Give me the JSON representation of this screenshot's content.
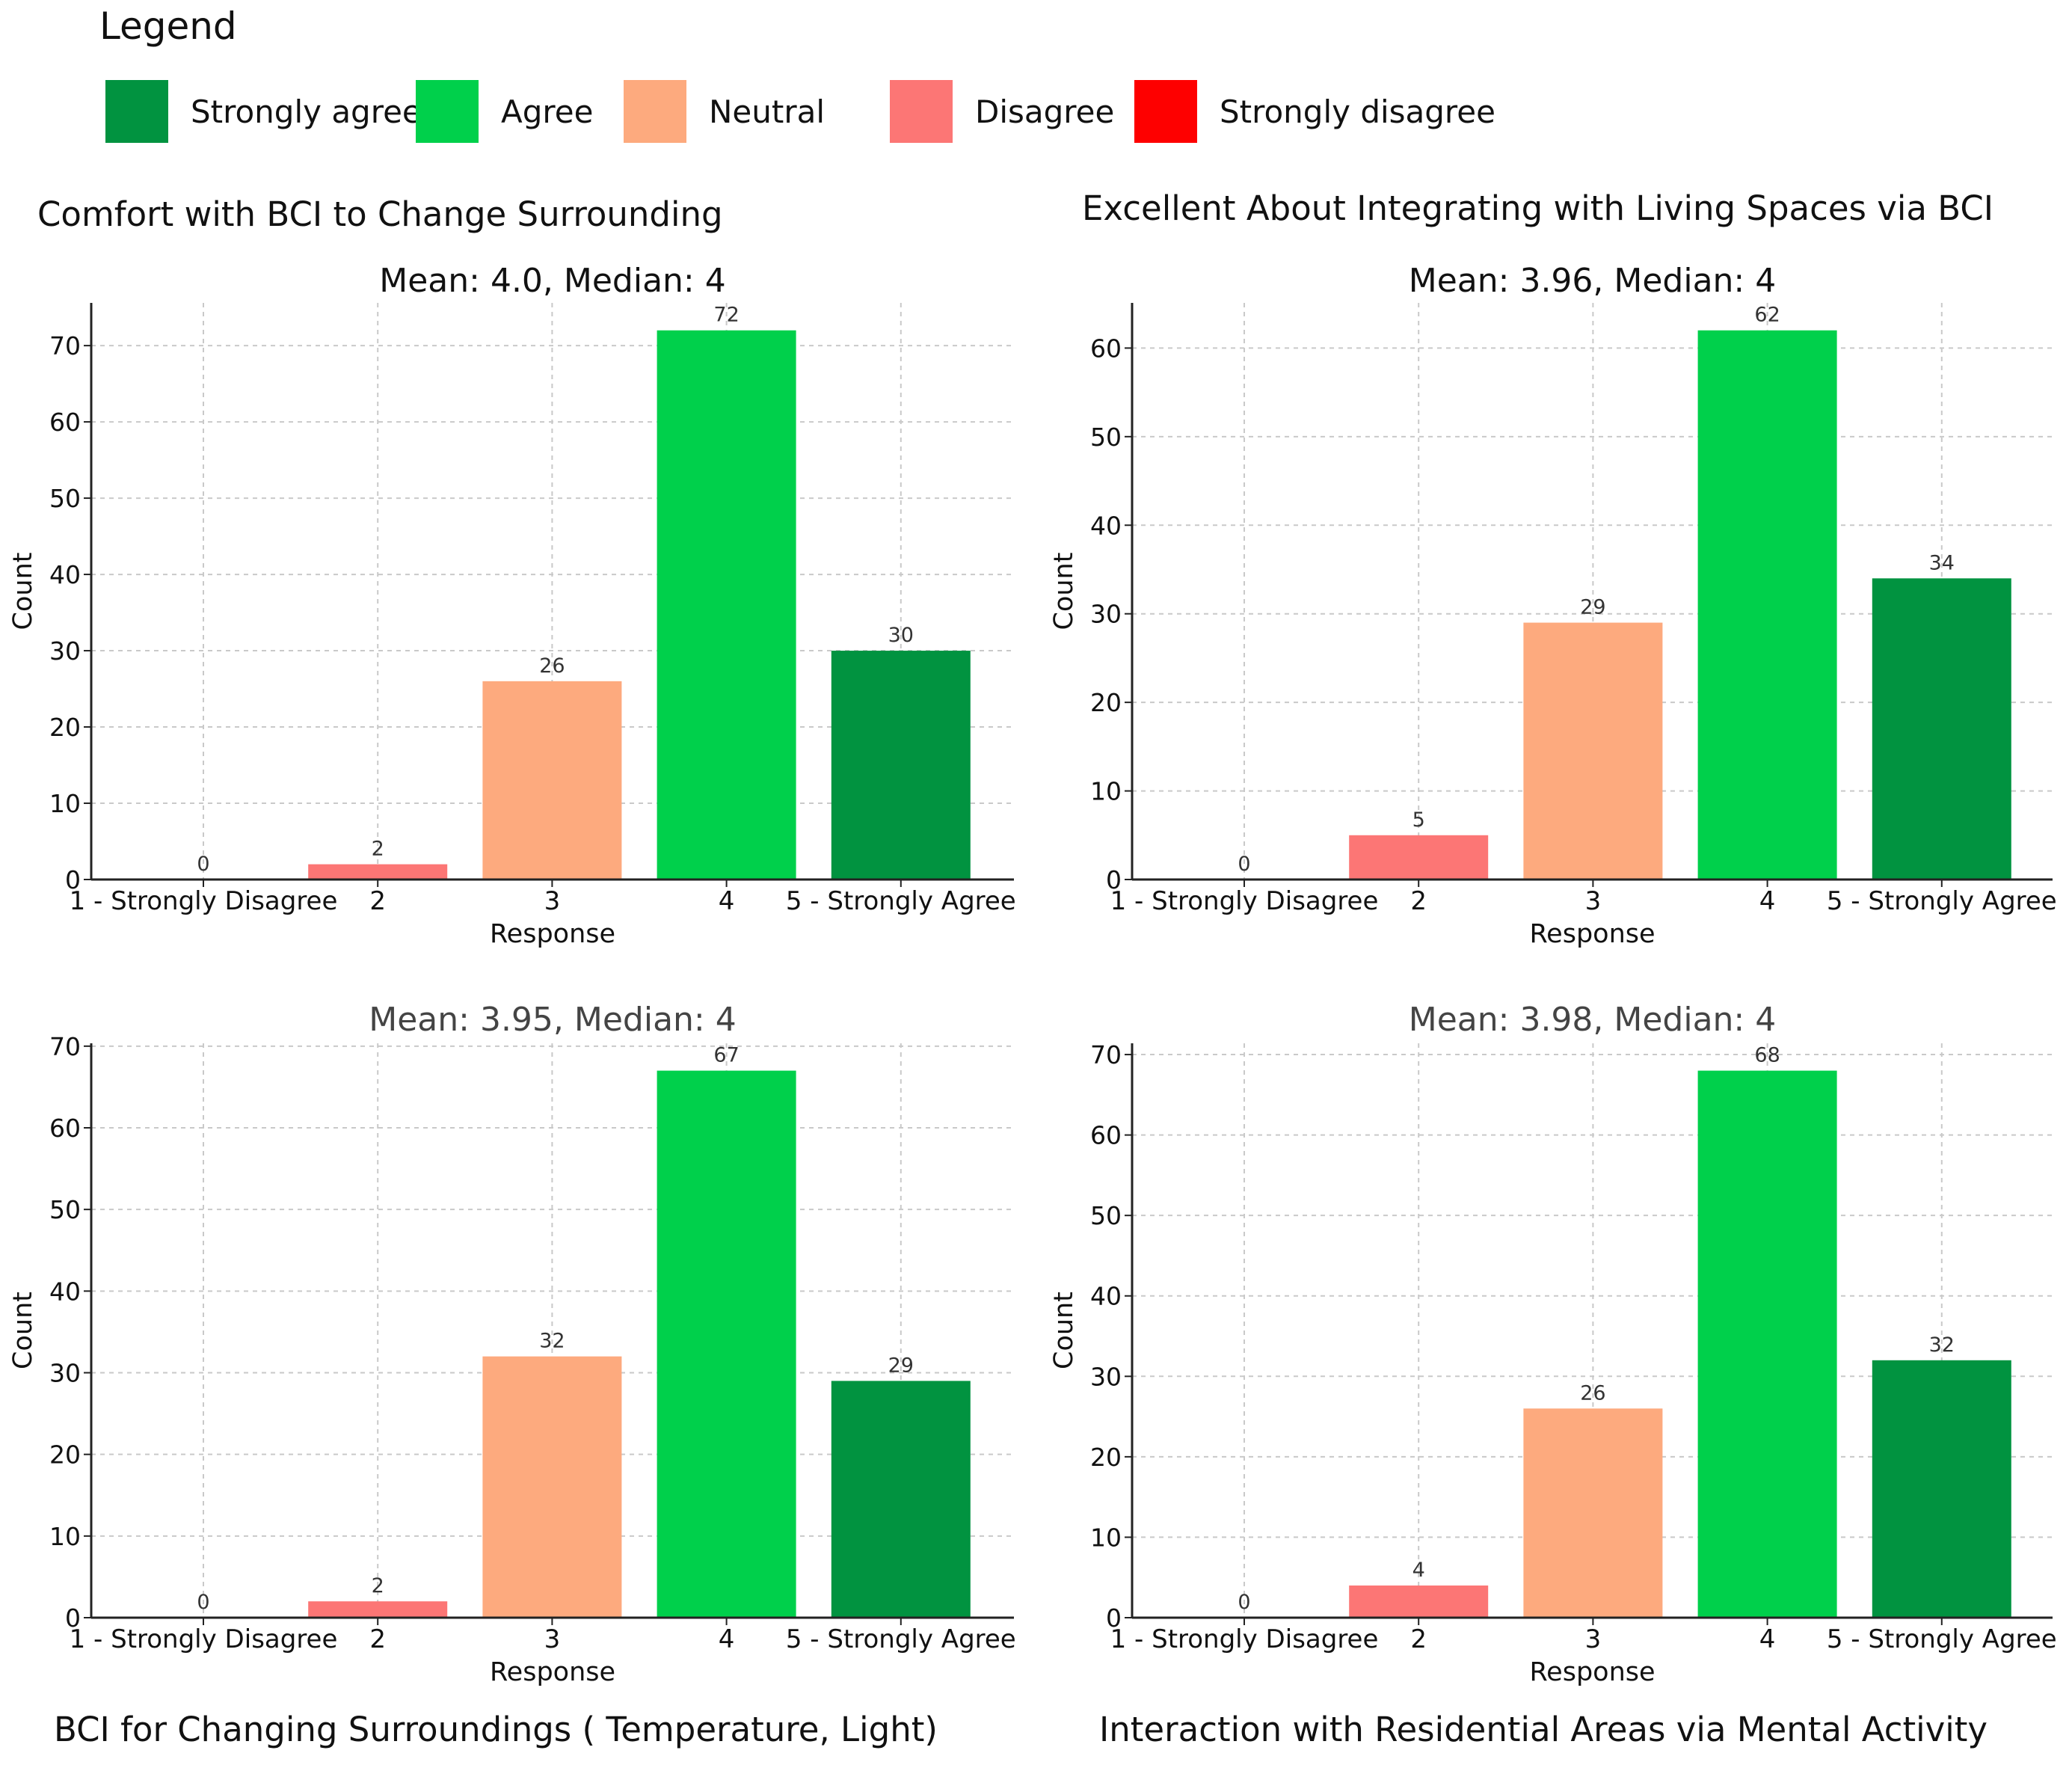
{
  "legend": {
    "title": "Legend",
    "items": [
      {
        "label": "Strongly agree",
        "color": "#019340"
      },
      {
        "label": "Agree",
        "color": "#00D04B"
      },
      {
        "label": "Neutral",
        "color": "#FDAA7E"
      },
      {
        "label": "Disagree",
        "color": "#FC7675"
      },
      {
        "label": "Strongly disagree",
        "color": "#FE0000"
      }
    ]
  },
  "panel_titles": [
    "Comfort with BCI to Change Surrounding",
    "Excellent About Integrating with Living Spaces via BCI",
    "BCI for Changing Surroundings ( Temperature, Light)",
    "Interaction with Residential Areas via Mental Activity"
  ],
  "chart_data": [
    {
      "type": "bar",
      "title": "Mean: 4.0, Median: 4",
      "xlabel": "Response",
      "ylabel": "Count",
      "categories": [
        "1 - Strongly Disagree",
        "2",
        "3",
        "4",
        "5 - Strongly Agree"
      ],
      "values": [
        0,
        2,
        26,
        72,
        30
      ],
      "colors": [
        "#FE0000",
        "#FC7675",
        "#FDAA7E",
        "#00D04B",
        "#019340"
      ],
      "yticks": [
        0,
        10,
        20,
        30,
        40,
        50,
        60,
        70
      ],
      "ylim": [
        0,
        75.6
      ],
      "grid": true
    },
    {
      "type": "bar",
      "title": "Mean: 3.96, Median: 4",
      "xlabel": "Response",
      "ylabel": "Count",
      "categories": [
        "1 - Strongly Disagree",
        "2",
        "3",
        "4",
        "5 - Strongly Agree"
      ],
      "values": [
        0,
        5,
        29,
        62,
        34
      ],
      "colors": [
        "#FE0000",
        "#FC7675",
        "#FDAA7E",
        "#00D04B",
        "#019340"
      ],
      "yticks": [
        0,
        10,
        20,
        30,
        40,
        50,
        60
      ],
      "ylim": [
        0,
        65.1
      ],
      "grid": true
    },
    {
      "type": "bar",
      "title": "Mean: 3.95, Median: 4",
      "xlabel": "Response",
      "ylabel": "Count",
      "categories": [
        "1 - Strongly Disagree",
        "2",
        "3",
        "4",
        "5 - Strongly Agree"
      ],
      "values": [
        0,
        2,
        32,
        67,
        29
      ],
      "colors": [
        "#FE0000",
        "#FC7675",
        "#FDAA7E",
        "#00D04B",
        "#019340"
      ],
      "yticks": [
        0,
        10,
        20,
        30,
        40,
        50,
        60,
        70
      ],
      "ylim": [
        0,
        70.35
      ],
      "grid": true
    },
    {
      "type": "bar",
      "title": "Mean: 3.98, Median: 4",
      "xlabel": "Response",
      "ylabel": "Count",
      "categories": [
        "1 - Strongly Disagree",
        "2",
        "3",
        "4",
        "5 - Strongly Agree"
      ],
      "values": [
        0,
        4,
        26,
        68,
        32
      ],
      "colors": [
        "#FE0000",
        "#FC7675",
        "#FDAA7E",
        "#00D04B",
        "#019340"
      ],
      "yticks": [
        0,
        10,
        20,
        30,
        40,
        50,
        60,
        70
      ],
      "ylim": [
        0,
        71.4
      ],
      "grid": true
    }
  ]
}
